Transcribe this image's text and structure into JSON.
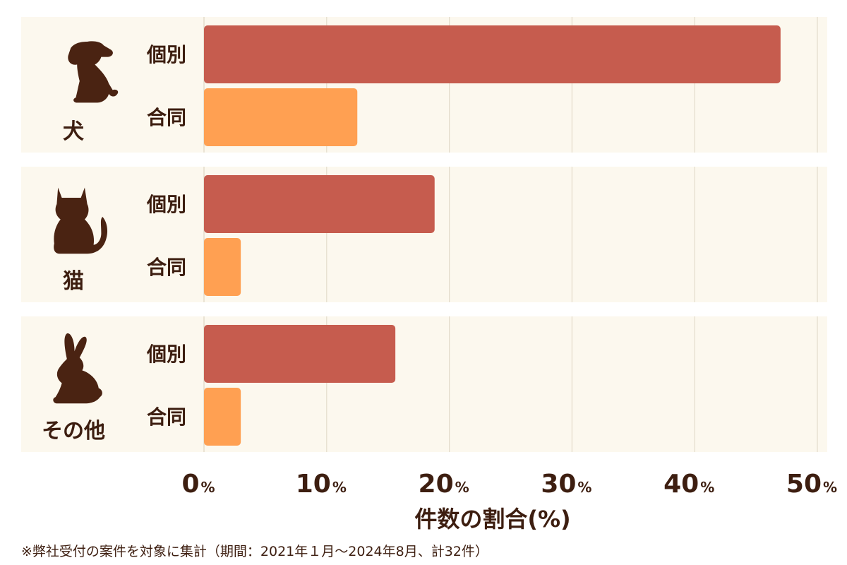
{
  "chart_data": {
    "type": "bar",
    "orientation": "horizontal",
    "groups": [
      {
        "label": "犬",
        "icon": "dog-icon",
        "bars": [
          {
            "label": "個別",
            "value": 47
          },
          {
            "label": "合同",
            "value": 12.5
          }
        ]
      },
      {
        "label": "猫",
        "icon": "cat-icon",
        "bars": [
          {
            "label": "個別",
            "value": 18.8
          },
          {
            "label": "合同",
            "value": 3
          }
        ]
      },
      {
        "label": "その他",
        "icon": "rabbit-icon",
        "bars": [
          {
            "label": "個別",
            "value": 15.6
          },
          {
            "label": "合同",
            "value": 3
          }
        ]
      }
    ],
    "xlim": [
      0,
      50
    ],
    "xticks": [
      0,
      10,
      20,
      30,
      40,
      50
    ],
    "tick_unit": "%",
    "xlabel": "件数の割合(%)",
    "grid": true
  },
  "colors": {
    "individual": "#c65c4e",
    "joint": "#ffa052",
    "panel": "#fcf8ee",
    "grid": "#e3dccb",
    "text": "#3d1e10"
  },
  "footnote": "※弊社受付の案件を対象に集計（期間：2021年１月〜2024年8月、計32件）"
}
